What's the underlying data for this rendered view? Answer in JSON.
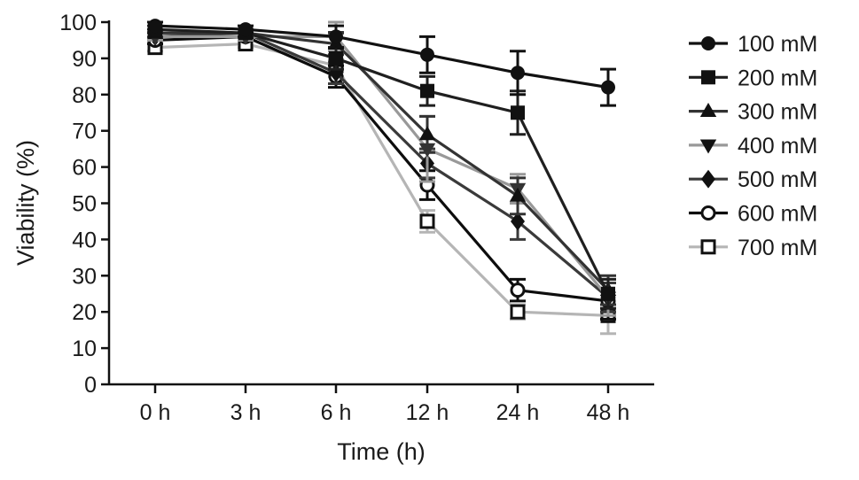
{
  "chart_data": {
    "type": "line",
    "title": "",
    "xlabel": "Time (h)",
    "ylabel": "Viability (%)",
    "categories": [
      "0 h",
      "3 h",
      "6 h",
      "12 h",
      "24 h",
      "48 h"
    ],
    "ylim": [
      0,
      100
    ],
    "yticks": [
      0,
      10,
      20,
      30,
      40,
      50,
      60,
      70,
      80,
      90,
      100
    ],
    "grid": false,
    "legend_position": "right",
    "error_bars": true,
    "series": [
      {
        "name": "100 mM",
        "marker": "circle",
        "color": "#111111",
        "values": [
          99,
          98,
          96,
          91,
          86,
          82
        ],
        "errors": [
          1,
          1,
          3,
          5,
          6,
          5
        ]
      },
      {
        "name": "200 mM",
        "marker": "square",
        "color": "#1f1f1f",
        "values": [
          98,
          97,
          90,
          81,
          75,
          25
        ],
        "errors": [
          1,
          1,
          3,
          4,
          6,
          4
        ]
      },
      {
        "name": "300 mM",
        "marker": "triangle-up",
        "color": "#333333",
        "values": [
          97,
          97,
          94,
          69,
          52,
          26
        ],
        "errors": [
          1,
          1,
          3,
          5,
          5,
          4
        ]
      },
      {
        "name": "400 mM",
        "marker": "triangle-down",
        "color": "#999999",
        "values": [
          96,
          96,
          96,
          65,
          54,
          24
        ],
        "errors": [
          1,
          1,
          4,
          9,
          4,
          5
        ]
      },
      {
        "name": "500 mM",
        "marker": "diamond",
        "color": "#3a3a3a",
        "values": [
          96,
          97,
          86,
          61,
          45,
          24
        ],
        "errors": [
          1,
          1,
          3,
          4,
          5,
          4
        ]
      },
      {
        "name": "600 mM",
        "marker": "circle-open",
        "color": "#0d0d0d",
        "values": [
          95,
          96,
          85,
          55,
          26,
          23
        ],
        "errors": [
          1,
          1,
          3,
          4,
          3,
          5
        ]
      },
      {
        "name": "700 mM",
        "marker": "square-open",
        "color": "#b5b5b5",
        "values": [
          93,
          94,
          88,
          45,
          20,
          19
        ],
        "errors": [
          1,
          1,
          3,
          3,
          2,
          5
        ]
      }
    ]
  }
}
